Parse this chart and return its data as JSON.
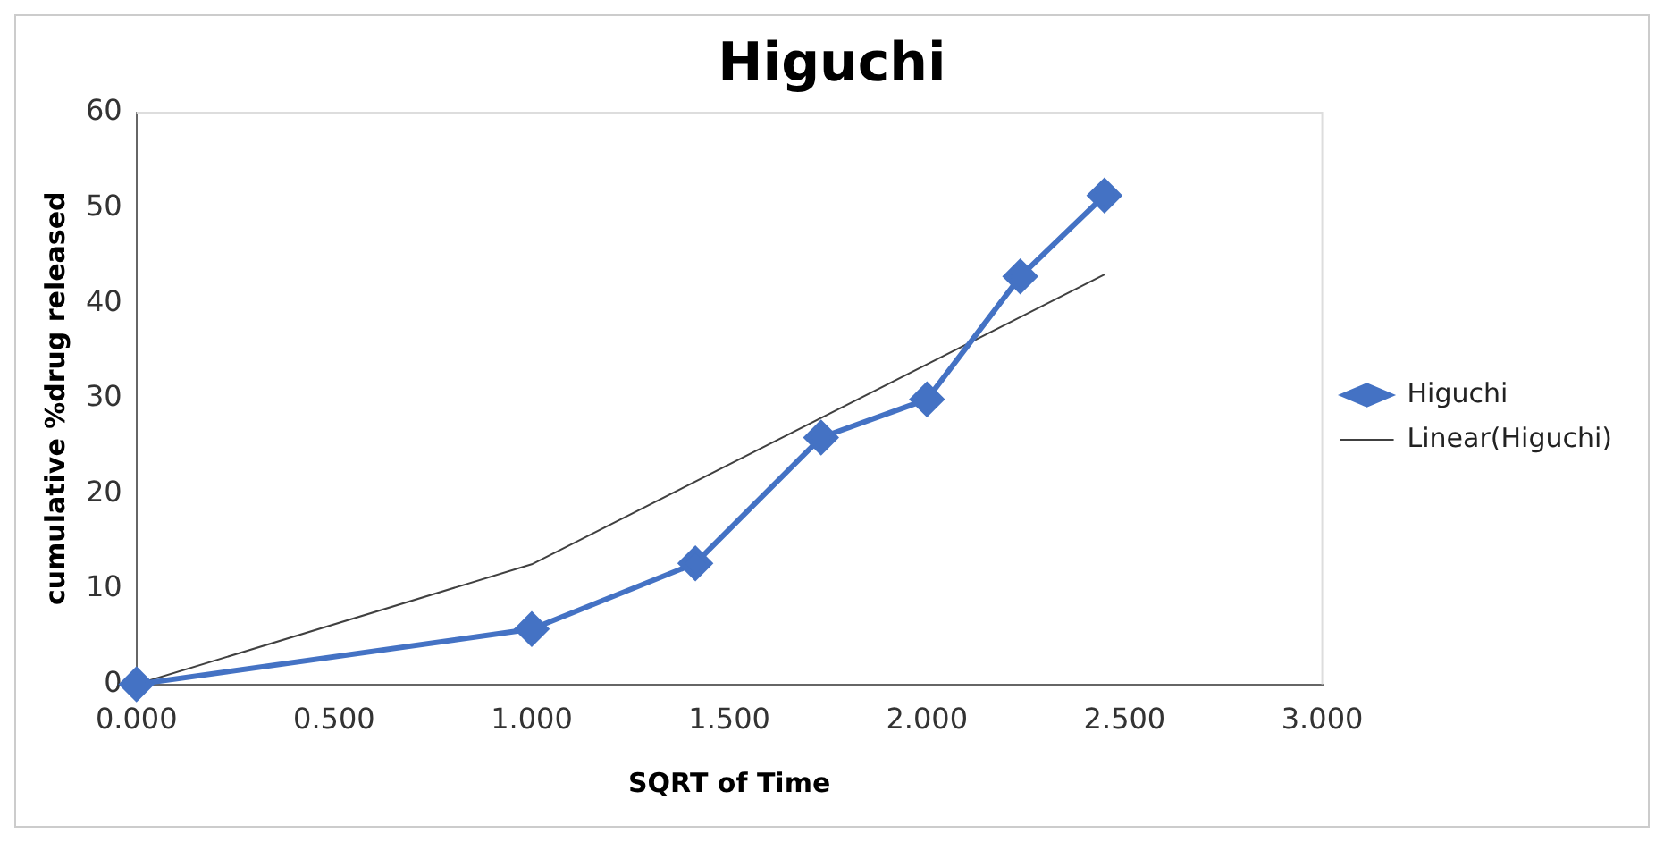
{
  "chart_data": {
    "type": "line",
    "title": "Higuchi",
    "xlabel": "SQRT of Time",
    "ylabel": "cumulative %drug released",
    "xlim": [
      0,
      3
    ],
    "xticks": [
      {
        "value": 0,
        "label": "0.000"
      },
      {
        "value": 0.5,
        "label": "0.500"
      },
      {
        "value": 1,
        "label": "1.000"
      },
      {
        "value": 1.5,
        "label": "1.500"
      },
      {
        "value": 2,
        "label": "2.000"
      },
      {
        "value": 2.5,
        "label": "2.500"
      },
      {
        "value": 3,
        "label": "3.000"
      }
    ],
    "ylim": [
      0,
      60
    ],
    "yticks": [
      0,
      10,
      20,
      30,
      40,
      50,
      60
    ],
    "grid": false,
    "legend": "right",
    "series": [
      {
        "name": "Higuchi",
        "color": "#4472c4",
        "marker": "diamond",
        "x": [
          0,
          1,
          1.414,
          1.732,
          2,
          2.236,
          2.449
        ],
        "values": [
          0,
          5.8,
          12.7,
          25.9,
          29.9,
          42.8,
          51.3
        ]
      },
      {
        "name": "Linear(Higuchi)",
        "color": "#404040",
        "marker": "none",
        "x": [
          0,
          1,
          2.449
        ],
        "values": [
          0,
          12.6,
          43.0
        ]
      }
    ]
  }
}
